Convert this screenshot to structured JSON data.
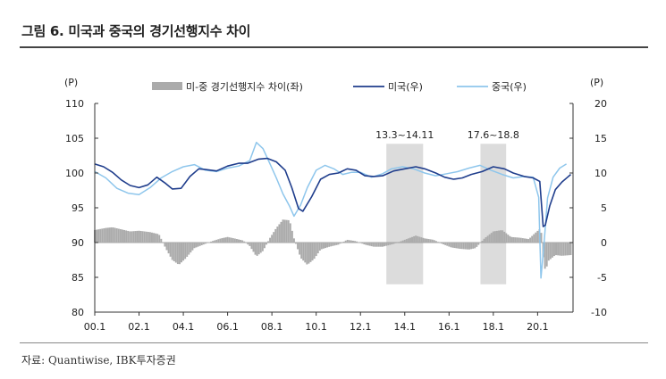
{
  "figure": {
    "title": "그림 6. 미국과 중국의 경기선행지수 차이",
    "source": "자료: Quantiwise, IBK투자증권"
  },
  "chart_data": {
    "type": "line",
    "left_unit": "(P)",
    "right_unit": "(P)",
    "left_axis": {
      "ylim": [
        80,
        110
      ],
      "ticks": [
        80,
        85,
        90,
        95,
        100,
        105,
        110
      ]
    },
    "right_axis": {
      "ylim": [
        -10,
        20
      ],
      "ticks": [
        -10,
        -5,
        0,
        5,
        10,
        15,
        20
      ]
    },
    "x_ticks": [
      "00.1",
      "02.1",
      "04.1",
      "06.1",
      "08.1",
      "10.1",
      "12.1",
      "14.1",
      "16.1",
      "18.1",
      "20.1"
    ],
    "legend": [
      "미-중 경기선행지수 차이(좌)",
      "미국(우)",
      "중국(우)"
    ],
    "legend_position": "top",
    "colors": {
      "diff": "#ababab",
      "us": "#1f3d8c",
      "cn": "#8ec6ec",
      "shade": "#dcdcdc"
    },
    "shaded_periods": [
      {
        "label": "13.3~14.11",
        "start": 2013.17,
        "end": 2014.83
      },
      {
        "label": "17.6~18.8",
        "start": 2017.42,
        "end": 2018.58
      }
    ],
    "x_range": [
      2000.0,
      2021.6
    ],
    "series": [
      {
        "name": "미국(우)",
        "axis": "left",
        "points": [
          [
            2000.0,
            101.3
          ],
          [
            2000.4,
            100.9
          ],
          [
            2000.8,
            100.1
          ],
          [
            2001.2,
            99.0
          ],
          [
            2001.6,
            98.2
          ],
          [
            2002.0,
            97.9
          ],
          [
            2002.4,
            98.3
          ],
          [
            2002.8,
            99.4
          ],
          [
            2003.2,
            98.5
          ],
          [
            2003.5,
            97.7
          ],
          [
            2003.9,
            97.8
          ],
          [
            2004.3,
            99.5
          ],
          [
            2004.7,
            100.6
          ],
          [
            2005.0,
            100.5
          ],
          [
            2005.5,
            100.3
          ],
          [
            2006.0,
            101.0
          ],
          [
            2006.5,
            101.4
          ],
          [
            2006.9,
            101.4
          ],
          [
            2007.4,
            102.0
          ],
          [
            2007.8,
            102.1
          ],
          [
            2008.2,
            101.6
          ],
          [
            2008.6,
            100.4
          ],
          [
            2008.9,
            97.9
          ],
          [
            2009.2,
            94.9
          ],
          [
            2009.4,
            94.5
          ],
          [
            2009.8,
            96.6
          ],
          [
            2010.2,
            99.1
          ],
          [
            2010.6,
            99.8
          ],
          [
            2011.0,
            100.0
          ],
          [
            2011.4,
            100.6
          ],
          [
            2011.8,
            100.4
          ],
          [
            2012.2,
            99.6
          ],
          [
            2012.6,
            99.5
          ],
          [
            2013.0,
            99.6
          ],
          [
            2013.5,
            100.3
          ],
          [
            2014.0,
            100.6
          ],
          [
            2014.5,
            100.9
          ],
          [
            2014.9,
            100.6
          ],
          [
            2015.4,
            100.0
          ],
          [
            2015.8,
            99.4
          ],
          [
            2016.2,
            99.1
          ],
          [
            2016.6,
            99.3
          ],
          [
            2017.0,
            99.8
          ],
          [
            2017.5,
            100.2
          ],
          [
            2018.0,
            100.9
          ],
          [
            2018.5,
            100.6
          ],
          [
            2018.9,
            100.0
          ],
          [
            2019.4,
            99.5
          ],
          [
            2019.8,
            99.3
          ],
          [
            2020.1,
            98.8
          ],
          [
            2020.25,
            92.3
          ],
          [
            2020.35,
            92.5
          ],
          [
            2020.55,
            95.3
          ],
          [
            2020.8,
            97.6
          ],
          [
            2021.1,
            98.7
          ],
          [
            2021.5,
            99.8
          ]
        ]
      },
      {
        "name": "중국(우)",
        "axis": "left",
        "points": [
          [
            2000.0,
            100.2
          ],
          [
            2000.5,
            99.3
          ],
          [
            2001.0,
            97.8
          ],
          [
            2001.5,
            97.1
          ],
          [
            2002.0,
            96.9
          ],
          [
            2002.5,
            97.9
          ],
          [
            2003.0,
            99.3
          ],
          [
            2003.5,
            100.2
          ],
          [
            2004.0,
            100.9
          ],
          [
            2004.5,
            101.2
          ],
          [
            2005.0,
            100.4
          ],
          [
            2005.5,
            100.2
          ],
          [
            2006.0,
            100.7
          ],
          [
            2006.5,
            101.0
          ],
          [
            2007.0,
            101.8
          ],
          [
            2007.3,
            104.4
          ],
          [
            2007.6,
            103.5
          ],
          [
            2007.9,
            101.4
          ],
          [
            2008.2,
            99.3
          ],
          [
            2008.5,
            97.0
          ],
          [
            2008.8,
            95.2
          ],
          [
            2009.0,
            93.8
          ],
          [
            2009.3,
            95.4
          ],
          [
            2009.6,
            97.9
          ],
          [
            2010.0,
            100.4
          ],
          [
            2010.4,
            101.1
          ],
          [
            2010.8,
            100.6
          ],
          [
            2011.2,
            99.8
          ],
          [
            2011.6,
            100.1
          ],
          [
            2012.0,
            100.1
          ],
          [
            2012.5,
            99.4
          ],
          [
            2013.0,
            99.9
          ],
          [
            2013.4,
            100.6
          ],
          [
            2013.9,
            100.9
          ],
          [
            2014.4,
            100.6
          ],
          [
            2014.9,
            100.0
          ],
          [
            2015.4,
            99.6
          ],
          [
            2015.9,
            99.9
          ],
          [
            2016.4,
            100.2
          ],
          [
            2016.9,
            100.7
          ],
          [
            2017.4,
            101.1
          ],
          [
            2017.9,
            100.4
          ],
          [
            2018.4,
            99.8
          ],
          [
            2018.9,
            99.3
          ],
          [
            2019.4,
            99.5
          ],
          [
            2019.8,
            99.4
          ],
          [
            2020.05,
            96.5
          ],
          [
            2020.15,
            84.9
          ],
          [
            2020.28,
            89.4
          ],
          [
            2020.45,
            96.4
          ],
          [
            2020.7,
            99.4
          ],
          [
            2021.0,
            100.7
          ],
          [
            2021.3,
            101.3
          ]
        ]
      },
      {
        "name": "미-중 경기선행지수 차이(좌)",
        "axis": "right",
        "kind": "bar",
        "points": [
          [
            2000.0,
            1.8
          ],
          [
            2000.5,
            2.1
          ],
          [
            2000.8,
            2.2
          ],
          [
            2001.2,
            1.9
          ],
          [
            2001.6,
            1.6
          ],
          [
            2002.0,
            1.7
          ],
          [
            2002.5,
            1.5
          ],
          [
            2002.9,
            1.2
          ],
          [
            2003.2,
            -0.8
          ],
          [
            2003.5,
            -2.5
          ],
          [
            2003.8,
            -3.2
          ],
          [
            2004.1,
            -2.3
          ],
          [
            2004.5,
            -0.8
          ],
          [
            2004.9,
            -0.3
          ],
          [
            2005.3,
            0.2
          ],
          [
            2005.7,
            0.6
          ],
          [
            2006.0,
            0.8
          ],
          [
            2006.3,
            0.6
          ],
          [
            2006.7,
            0.3
          ],
          [
            2007.0,
            -0.5
          ],
          [
            2007.3,
            -2.0
          ],
          [
            2007.6,
            -1.2
          ],
          [
            2007.9,
            0.6
          ],
          [
            2008.2,
            2.1
          ],
          [
            2008.5,
            3.3
          ],
          [
            2008.8,
            3.2
          ],
          [
            2009.0,
            0.6
          ],
          [
            2009.3,
            -2.2
          ],
          [
            2009.6,
            -3.2
          ],
          [
            2009.9,
            -2.4
          ],
          [
            2010.2,
            -1.0
          ],
          [
            2010.6,
            -0.6
          ],
          [
            2011.0,
            -0.3
          ],
          [
            2011.4,
            0.4
          ],
          [
            2011.8,
            0.2
          ],
          [
            2012.2,
            -0.3
          ],
          [
            2012.6,
            -0.6
          ],
          [
            2013.0,
            -0.6
          ],
          [
            2013.5,
            -0.2
          ],
          [
            2014.0,
            0.4
          ],
          [
            2014.5,
            1.0
          ],
          [
            2014.9,
            0.6
          ],
          [
            2015.3,
            0.4
          ],
          [
            2015.7,
            -0.2
          ],
          [
            2016.1,
            -0.7
          ],
          [
            2016.5,
            -0.9
          ],
          [
            2016.9,
            -1.0
          ],
          [
            2017.2,
            -0.8
          ],
          [
            2017.6,
            0.6
          ],
          [
            2018.0,
            1.6
          ],
          [
            2018.4,
            1.8
          ],
          [
            2018.8,
            0.8
          ],
          [
            2019.2,
            0.7
          ],
          [
            2019.6,
            0.5
          ],
          [
            2019.9,
            1.4
          ],
          [
            2020.15,
            2.1
          ],
          [
            2020.25,
            -2.1
          ],
          [
            2020.35,
            -4.1
          ],
          [
            2020.5,
            -2.6
          ],
          [
            2020.8,
            -1.8
          ],
          [
            2021.1,
            -1.9
          ],
          [
            2021.5,
            -1.8
          ]
        ]
      }
    ]
  }
}
